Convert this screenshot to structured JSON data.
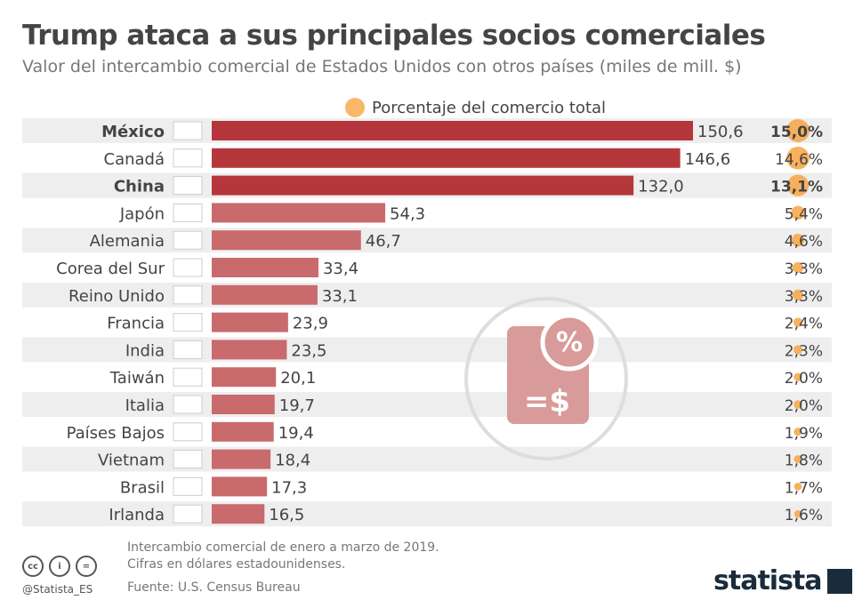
{
  "title": "Trump ataca a sus principales socios comerciales",
  "subtitle": "Valor del intercambio comercial de Estados Unidos con otros países (miles de mill. $)",
  "legend": "Porcentaje del comercio total",
  "colors": {
    "bar_highlight": "#b5373c",
    "bar": "#c96a6c",
    "dot": "#f7a543",
    "row_alt": "#eeeeee"
  },
  "chart_data": {
    "type": "bar",
    "orientation": "horizontal",
    "categories": [
      "México",
      "Canadá",
      "China",
      "Japón",
      "Alemania",
      "Corea del Sur",
      "Reino Unido",
      "Francia",
      "India",
      "Taiwán",
      "Italia",
      "Países Bajos",
      "Vietnam",
      "Brasil",
      "Irlanda"
    ],
    "values": [
      150.6,
      146.6,
      132.0,
      54.3,
      46.7,
      33.4,
      33.1,
      23.9,
      23.5,
      20.1,
      19.7,
      19.4,
      18.4,
      17.3,
      16.5
    ],
    "value_labels": [
      "150,6",
      "146,6",
      "132,0",
      "54,3",
      "46,7",
      "33,4",
      "33,1",
      "23,9",
      "23,5",
      "20,1",
      "19,7",
      "19,4",
      "18,4",
      "17,3",
      "16,5"
    ],
    "share_percent": [
      15.0,
      14.6,
      13.1,
      5.4,
      4.6,
      3.3,
      3.3,
      2.4,
      2.3,
      2.0,
      2.0,
      1.9,
      1.8,
      1.7,
      1.6
    ],
    "share_labels": [
      "15,0%",
      "14,6%",
      "13,1%",
      "5,4%",
      "4,6%",
      "3,3%",
      "3,3%",
      "2,4%",
      "2,3%",
      "2,0%",
      "2,0%",
      "1,9%",
      "1,8%",
      "1,7%",
      "1,6%"
    ],
    "highlighted": [
      "México",
      "Canadá",
      "China"
    ],
    "bold_labels": [
      "México",
      "China"
    ]
  },
  "footer": {
    "note1": "Intercambio comercial de enero a marzo de 2019.",
    "note2": "Cifras en dólares estadounidenses.",
    "source": "Fuente: U.S. Census Bureau",
    "handle": "@Statista_ES",
    "logo": "statista",
    "cc": [
      "cc",
      "i",
      "="
    ]
  }
}
